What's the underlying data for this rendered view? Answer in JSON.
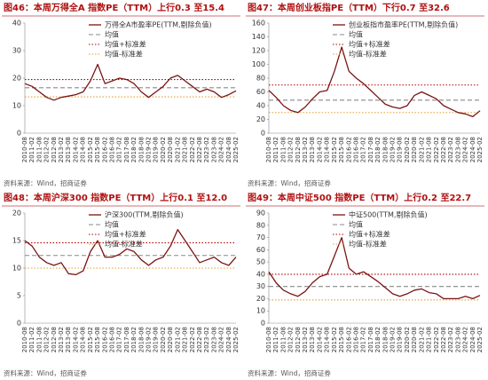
{
  "chart_data": [
    {
      "type": "line",
      "title": "图46：本周万得全A 指数PE（TTM）上行0.3 至15.4",
      "source": "资料来源：Wind，招商证券",
      "categories": [
        "2010-08",
        "2011-02",
        "2011-08",
        "2012-02",
        "2012-08",
        "2013-02",
        "2013-08",
        "2014-02",
        "2014-08",
        "2015-02",
        "2015-08",
        "2016-02",
        "2016-08",
        "2017-02",
        "2017-08",
        "2018-02",
        "2018-08",
        "2019-02",
        "2019-08",
        "2020-02",
        "2020-08",
        "2021-02",
        "2021-08",
        "2022-02",
        "2022-08",
        "2023-02",
        "2023-08",
        "2024-02",
        "2024-08",
        "2025-02"
      ],
      "series": [
        {
          "name": "万得全A市盈率PE(TTM,剔除负值)",
          "color": "#7b1414",
          "values": [
            18,
            17,
            15,
            13,
            12,
            13,
            13.5,
            14,
            15,
            19,
            25,
            18,
            19,
            20,
            19.5,
            18,
            15,
            13,
            15,
            17,
            20,
            21,
            19,
            17,
            15,
            16,
            15,
            13,
            14,
            15.4
          ]
        }
      ],
      "reference_lines": [
        {
          "name": "均值",
          "value": 16.5,
          "color": "#888888",
          "dash": "5,3"
        },
        {
          "name": "均值+标准差",
          "value": 19.5,
          "color": "#b00000",
          "dash": "1.5,2"
        },
        {
          "name": "均值-标准差",
          "value": 13.2,
          "color": "#e0a030",
          "dash": "1.5,2"
        }
      ],
      "ylim": [
        0,
        40
      ],
      "yticks": [
        0,
        10,
        20,
        30,
        40
      ]
    },
    {
      "type": "line",
      "title": "图47：本周创业板指PE（TTM）下行0.7 至32.6",
      "source": "资料来源：Wind，招商证券",
      "categories": [
        "2010-08",
        "2011-02",
        "2011-08",
        "2012-02",
        "2012-08",
        "2013-02",
        "2013-08",
        "2014-02",
        "2014-08",
        "2015-02",
        "2015-08",
        "2016-02",
        "2016-08",
        "2017-02",
        "2017-08",
        "2018-02",
        "2018-08",
        "2019-02",
        "2019-08",
        "2020-02",
        "2020-08",
        "2021-02",
        "2021-08",
        "2022-02",
        "2022-08",
        "2023-02",
        "2023-08",
        "2024-02",
        "2024-08",
        "2025-02"
      ],
      "series": [
        {
          "name": "创业板指市盈率PE(TTM,剔除负值)",
          "color": "#7b1414",
          "values": [
            62,
            52,
            40,
            33,
            30,
            38,
            50,
            60,
            62,
            90,
            125,
            90,
            80,
            72,
            62,
            52,
            42,
            38,
            36,
            40,
            55,
            60,
            55,
            50,
            40,
            35,
            30,
            28,
            24,
            32.6
          ]
        }
      ],
      "reference_lines": [
        {
          "name": "均值",
          "value": 48,
          "color": "#888888",
          "dash": "5,3"
        },
        {
          "name": "均值+标准差",
          "value": 70,
          "color": "#b00000",
          "dash": "1.5,2"
        },
        {
          "name": "均值-标准差",
          "value": 30,
          "color": "#e0a030",
          "dash": "1.5,2"
        }
      ],
      "ylim": [
        0,
        160
      ],
      "yticks": [
        0,
        20,
        40,
        60,
        80,
        100,
        120,
        140,
        160
      ]
    },
    {
      "type": "line",
      "title": "图48：本周沪深300 指数PE（TTM）上行0.1 至12.0",
      "source": "资料来源：Wind，招商证券",
      "categories": [
        "2010-08",
        "2011-02",
        "2011-08",
        "2012-02",
        "2012-08",
        "2013-02",
        "2013-08",
        "2014-02",
        "2014-08",
        "2015-02",
        "2015-08",
        "2016-02",
        "2016-08",
        "2017-02",
        "2017-08",
        "2018-02",
        "2018-08",
        "2019-02",
        "2019-08",
        "2020-02",
        "2020-08",
        "2021-02",
        "2021-08",
        "2022-02",
        "2022-08",
        "2023-02",
        "2023-08",
        "2024-02",
        "2024-08",
        "2025-02"
      ],
      "series": [
        {
          "name": "沪深300(TTM,剔除负值)",
          "color": "#7b1414",
          "values": [
            15,
            14,
            12,
            11,
            10.5,
            11,
            9,
            8.8,
            9.5,
            13,
            15,
            12,
            12,
            12.5,
            13.5,
            13,
            11.5,
            10.5,
            11.5,
            12,
            14,
            17,
            15,
            13,
            11,
            11.5,
            12,
            11,
            10.5,
            12.0
          ]
        }
      ],
      "reference_lines": [
        {
          "name": "均值",
          "value": 12.3,
          "color": "#888888",
          "dash": "5,3"
        },
        {
          "name": "均值+标准差",
          "value": 14.6,
          "color": "#b00000",
          "dash": "1.5,2"
        },
        {
          "name": "均值-标准差",
          "value": 10.0,
          "color": "#e0a030",
          "dash": "1.5,2"
        }
      ],
      "ylim": [
        0,
        20
      ],
      "yticks": [
        0,
        5,
        10,
        15,
        20
      ]
    },
    {
      "type": "line",
      "title": "图49：本周中证500 指数PE（TTM）上行0.2 至22.7",
      "source": "资料来源：Wind，招商证券",
      "categories": [
        "2010-08",
        "2011-02",
        "2011-08",
        "2012-02",
        "2012-08",
        "2013-02",
        "2013-08",
        "2014-02",
        "2014-08",
        "2015-02",
        "2015-08",
        "2016-02",
        "2016-08",
        "2017-02",
        "2017-08",
        "2018-02",
        "2018-08",
        "2019-02",
        "2019-08",
        "2020-02",
        "2020-08",
        "2021-02",
        "2021-08",
        "2022-02",
        "2022-08",
        "2023-02",
        "2023-08",
        "2024-02",
        "2024-08",
        "2025-02"
      ],
      "series": [
        {
          "name": "中证500(TTM,剔除负值)",
          "color": "#7b1414",
          "values": [
            42,
            33,
            27,
            24,
            22,
            26,
            33,
            38,
            40,
            55,
            70,
            45,
            40,
            42,
            38,
            34,
            29,
            24,
            22,
            24,
            27,
            28,
            25,
            24,
            20,
            20,
            20,
            22,
            20,
            22.7
          ]
        }
      ],
      "reference_lines": [
        {
          "name": "均值",
          "value": 30,
          "color": "#888888",
          "dash": "5,3"
        },
        {
          "name": "均值+标准差",
          "value": 40,
          "color": "#b00000",
          "dash": "1.5,2"
        },
        {
          "name": "均值-标准差",
          "value": 19,
          "color": "#e0a030",
          "dash": "1.5,2"
        }
      ],
      "ylim": [
        0,
        90
      ],
      "yticks": [
        0,
        10,
        20,
        30,
        40,
        50,
        60,
        70,
        80,
        90
      ]
    }
  ]
}
